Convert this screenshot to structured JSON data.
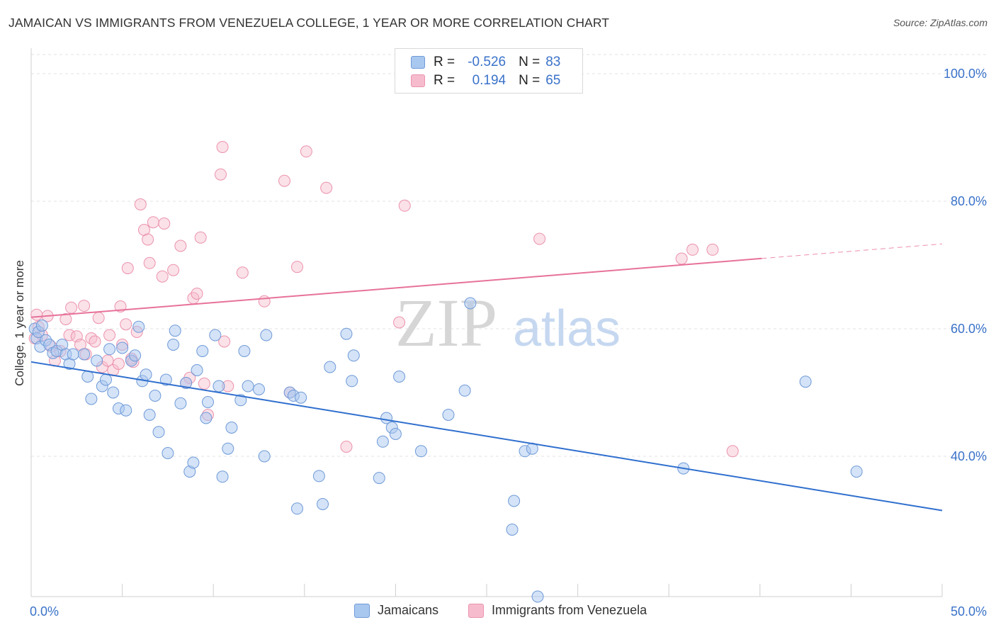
{
  "header": {
    "title": "JAMAICAN VS IMMIGRANTS FROM VENEZUELA COLLEGE, 1 YEAR OR MORE CORRELATION CHART",
    "source": "Source: ZipAtlas.com"
  },
  "watermark": {
    "zip": "ZIP",
    "atlas": "atlas"
  },
  "legend": {
    "rows": [
      {
        "r_label": "R =",
        "r_value": "-0.526",
        "n_label": "N =",
        "n_value": "83"
      },
      {
        "r_label": "R =",
        "r_value": "0.194",
        "n_label": "N =",
        "n_value": "65"
      }
    ]
  },
  "colors": {
    "blue_fill": "#a9c8ef",
    "blue_stroke": "#6f9ad8",
    "blue_line": "#2f6fce",
    "pink_fill": "#f6bccd",
    "pink_stroke": "#eb93ad",
    "pink_line": "#e7729a",
    "axis_text": "#3a72c9",
    "grid": "#e3e3e3"
  },
  "chart_data": {
    "type": "scatter",
    "title": "JAMAICAN VS IMMIGRANTS FROM VENEZUELA COLLEGE, 1 YEAR OR MORE CORRELATION CHART",
    "xlabel": "",
    "ylabel": "College, 1 year or more",
    "xlim": [
      0,
      50
    ],
    "ylim": [
      18,
      103
    ],
    "x_tick_labels": [
      "0.0%",
      "50.0%"
    ],
    "y_ticks": [
      40,
      60,
      80,
      100
    ],
    "y_tick_labels": [
      "40.0%",
      "60.0%",
      "80.0%",
      "100.0%"
    ],
    "grid": true,
    "legend_position": "top-center",
    "series": [
      {
        "name": "Jamaicans",
        "color": "#a9c8ef",
        "r": -0.526,
        "n": 83,
        "trend": {
          "x": [
            0,
            50
          ],
          "y": [
            54.8,
            31.5
          ]
        },
        "points": [
          [
            0.2,
            60.0
          ],
          [
            0.3,
            58.5
          ],
          [
            0.4,
            59.5
          ],
          [
            0.5,
            57.2
          ],
          [
            0.6,
            60.5
          ],
          [
            0.8,
            58.2
          ],
          [
            1.0,
            57.5
          ],
          [
            1.2,
            56.2
          ],
          [
            1.4,
            56.5
          ],
          [
            1.7,
            57.5
          ],
          [
            1.9,
            56.0
          ],
          [
            2.1,
            54.5
          ],
          [
            2.3,
            56.0
          ],
          [
            2.9,
            56.0
          ],
          [
            3.1,
            52.5
          ],
          [
            3.3,
            49.0
          ],
          [
            3.6,
            55.0
          ],
          [
            3.9,
            51.0
          ],
          [
            4.1,
            52.0
          ],
          [
            4.3,
            56.8
          ],
          [
            4.5,
            50.0
          ],
          [
            4.8,
            47.5
          ],
          [
            5.0,
            57.0
          ],
          [
            5.2,
            47.2
          ],
          [
            5.5,
            55.0
          ],
          [
            5.7,
            55.8
          ],
          [
            5.9,
            60.3
          ],
          [
            6.1,
            51.8
          ],
          [
            6.3,
            52.8
          ],
          [
            6.5,
            46.5
          ],
          [
            6.8,
            49.5
          ],
          [
            7.0,
            43.8
          ],
          [
            7.4,
            52.0
          ],
          [
            7.5,
            40.5
          ],
          [
            7.8,
            57.5
          ],
          [
            7.9,
            59.7
          ],
          [
            8.2,
            48.3
          ],
          [
            8.5,
            51.5
          ],
          [
            8.7,
            37.6
          ],
          [
            8.9,
            39.0
          ],
          [
            9.1,
            53.5
          ],
          [
            9.4,
            56.5
          ],
          [
            9.6,
            46.0
          ],
          [
            9.7,
            48.5
          ],
          [
            10.1,
            59.0
          ],
          [
            10.3,
            51.0
          ],
          [
            10.5,
            36.8
          ],
          [
            10.8,
            41.2
          ],
          [
            11.0,
            44.5
          ],
          [
            11.5,
            48.8
          ],
          [
            11.7,
            56.5
          ],
          [
            11.9,
            51.0
          ],
          [
            12.5,
            50.5
          ],
          [
            12.8,
            40.0
          ],
          [
            12.9,
            59.0
          ],
          [
            14.2,
            50.0
          ],
          [
            14.4,
            49.5
          ],
          [
            14.6,
            31.8
          ],
          [
            14.8,
            49.2
          ],
          [
            15.8,
            36.9
          ],
          [
            16.0,
            32.5
          ],
          [
            16.4,
            54.0
          ],
          [
            17.3,
            59.2
          ],
          [
            17.6,
            51.8
          ],
          [
            17.7,
            55.8
          ],
          [
            19.1,
            36.6
          ],
          [
            19.3,
            42.3
          ],
          [
            19.5,
            46.0
          ],
          [
            19.8,
            44.5
          ],
          [
            20.0,
            43.5
          ],
          [
            20.2,
            52.5
          ],
          [
            21.4,
            40.8
          ],
          [
            22.9,
            46.5
          ],
          [
            23.8,
            50.3
          ],
          [
            24.1,
            64.0
          ],
          [
            26.5,
            33.0
          ],
          [
            26.4,
            28.5
          ],
          [
            27.1,
            40.8
          ],
          [
            27.5,
            41.2
          ],
          [
            27.8,
            18.0
          ],
          [
            35.8,
            38.1
          ],
          [
            42.5,
            51.7
          ],
          [
            45.3,
            37.6
          ]
        ]
      },
      {
        "name": "Immigrants from Venezuela",
        "color": "#f6bccd",
        "r": 0.194,
        "n": 65,
        "trend": {
          "x": [
            0,
            50
          ],
          "y": [
            61.8,
            73.3
          ]
        },
        "points": [
          [
            0.2,
            58.5
          ],
          [
            0.3,
            62.2
          ],
          [
            0.4,
            60.3
          ],
          [
            0.6,
            59.0
          ],
          [
            0.9,
            62.0
          ],
          [
            1.1,
            57.2
          ],
          [
            1.3,
            55.0
          ],
          [
            1.6,
            56.5
          ],
          [
            1.9,
            61.5
          ],
          [
            2.1,
            59.0
          ],
          [
            2.2,
            63.3
          ],
          [
            2.5,
            58.8
          ],
          [
            2.7,
            57.5
          ],
          [
            2.9,
            63.6
          ],
          [
            3.0,
            56.0
          ],
          [
            3.3,
            58.5
          ],
          [
            3.5,
            58.0
          ],
          [
            3.7,
            61.7
          ],
          [
            3.9,
            54.0
          ],
          [
            4.2,
            55.0
          ],
          [
            4.3,
            59.0
          ],
          [
            4.5,
            53.5
          ],
          [
            4.8,
            54.5
          ],
          [
            4.9,
            63.5
          ],
          [
            5.0,
            57.5
          ],
          [
            5.2,
            60.7
          ],
          [
            5.3,
            69.5
          ],
          [
            5.5,
            55.3
          ],
          [
            5.6,
            54.8
          ],
          [
            5.8,
            59.5
          ],
          [
            6.0,
            79.5
          ],
          [
            6.2,
            75.5
          ],
          [
            6.4,
            74.0
          ],
          [
            6.5,
            70.3
          ],
          [
            6.7,
            76.7
          ],
          [
            7.2,
            68.2
          ],
          [
            7.3,
            76.5
          ],
          [
            7.8,
            69.2
          ],
          [
            8.2,
            73.0
          ],
          [
            8.5,
            51.5
          ],
          [
            8.7,
            52.3
          ],
          [
            8.9,
            64.8
          ],
          [
            9.1,
            65.5
          ],
          [
            9.3,
            74.3
          ],
          [
            9.5,
            51.4
          ],
          [
            9.7,
            46.5
          ],
          [
            10.4,
            84.2
          ],
          [
            10.5,
            88.5
          ],
          [
            10.6,
            58.0
          ],
          [
            10.8,
            51.0
          ],
          [
            11.6,
            68.8
          ],
          [
            12.8,
            64.3
          ],
          [
            13.9,
            83.2
          ],
          [
            14.2,
            50.0
          ],
          [
            14.6,
            69.7
          ],
          [
            15.1,
            87.8
          ],
          [
            16.2,
            82.1
          ],
          [
            17.3,
            41.5
          ],
          [
            20.2,
            61.0
          ],
          [
            20.5,
            79.3
          ],
          [
            27.9,
            74.1
          ],
          [
            35.7,
            71.0
          ],
          [
            36.3,
            72.4
          ],
          [
            37.4,
            72.4
          ],
          [
            38.5,
            40.8
          ]
        ]
      }
    ]
  },
  "bottom_legend": {
    "blue_label": "Jamaicans",
    "pink_label": "Immigrants from Venezuela"
  }
}
